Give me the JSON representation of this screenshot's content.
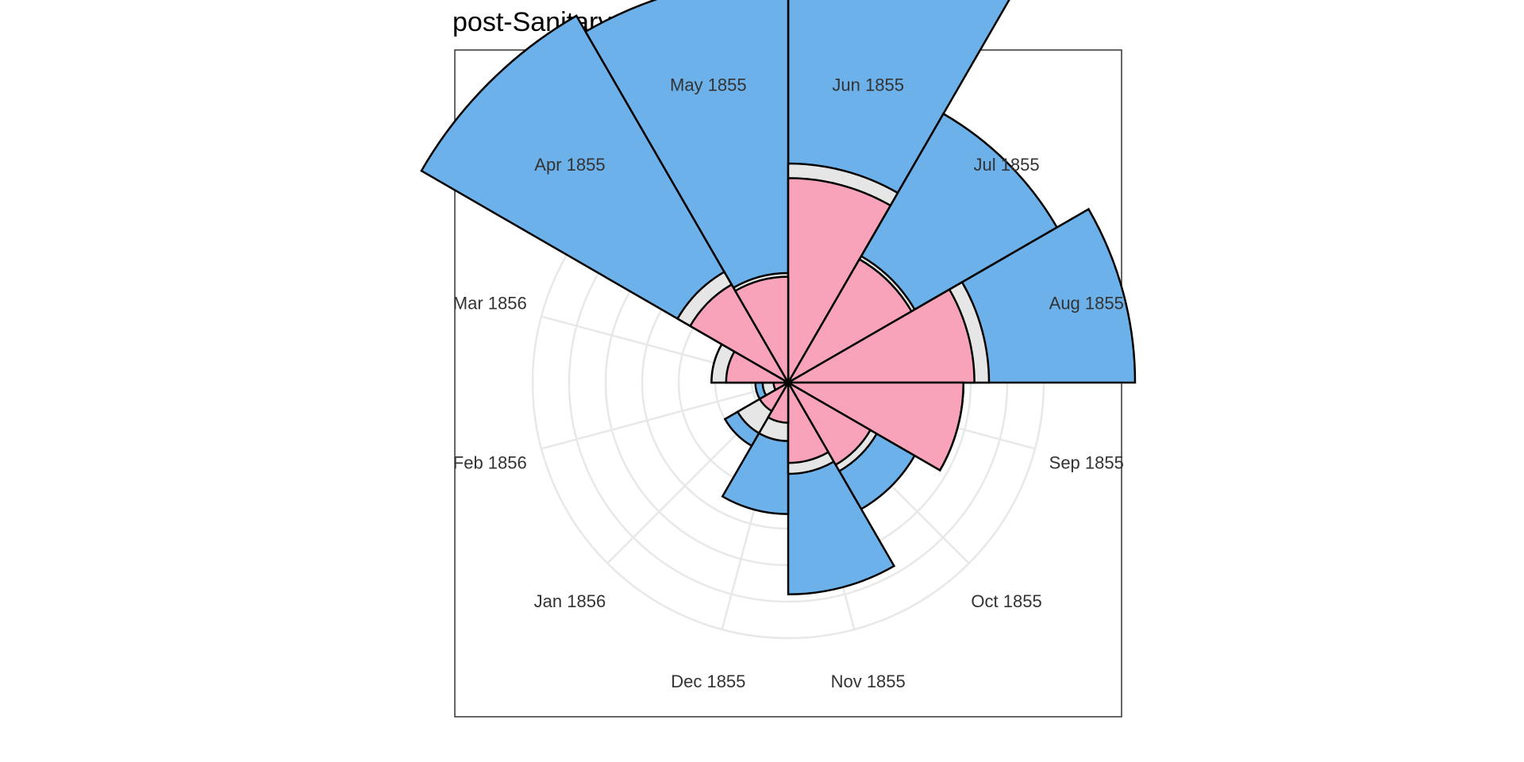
{
  "chart_data": {
    "type": "polar-area",
    "title": "post-Sanitary Commission",
    "categories": [
      "Jun 1855",
      "Jul 1855",
      "Aug 1855",
      "Sep 1855",
      "Oct 1855",
      "Nov 1855",
      "Dec 1855",
      "Jan 1856",
      "Feb 1856",
      "Mar 1856",
      "Apr 1855",
      "May 1855"
    ],
    "series": [
      {
        "key": "outer",
        "values": [
          13.0,
          8.5,
          9.5,
          4.8,
          4.0,
          5.8,
          3.6,
          2.0,
          0.9,
          2.1,
          11.6,
          11.1
        ]
      },
      {
        "key": "middle",
        "values": [
          6.0,
          4.0,
          5.5,
          4.8,
          2.8,
          2.5,
          1.6,
          1.6,
          0.7,
          2.1,
          3.5,
          3.0
        ]
      },
      {
        "key": "inner",
        "values": [
          5.6,
          3.9,
          5.1,
          4.8,
          2.6,
          2.2,
          1.1,
          0.9,
          0.4,
          1.7,
          3.1,
          2.9
        ]
      }
    ],
    "colors": {
      "outer": "#6cb1ea",
      "middle": "#e6e6e6",
      "inner": "#f8a3b9",
      "grid": "#e8e8e8",
      "outline": "#000000",
      "frame": "#333333"
    },
    "radial_scale": "square-root",
    "r_gridlines": [
      1,
      2,
      3,
      4,
      5,
      6,
      7
    ],
    "grid": true,
    "legend": "none"
  }
}
